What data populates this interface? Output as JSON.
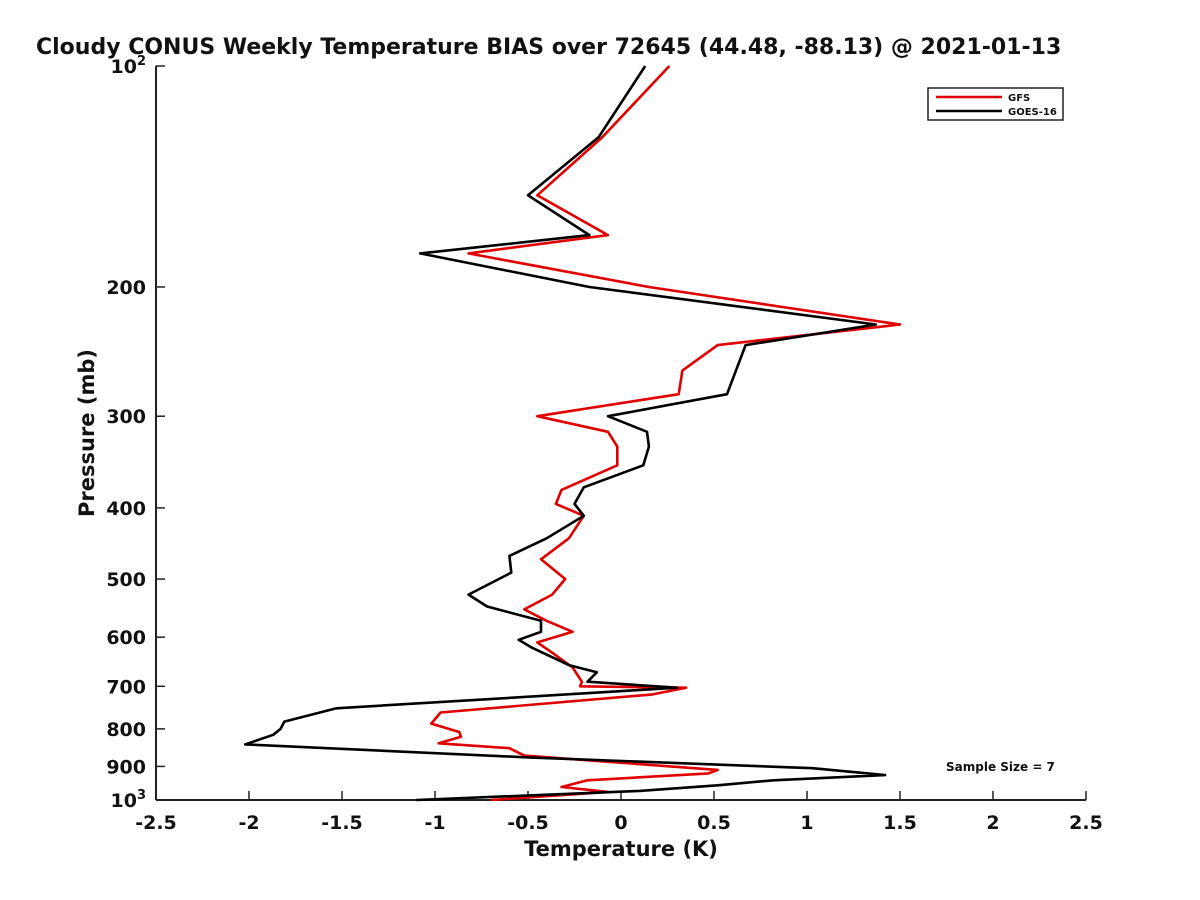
{
  "chart_data": {
    "type": "line",
    "title": "Cloudy CONUS Weekly Temperature BIAS over 72645 (44.48, -88.13) @ 2021-01-13",
    "xlabel": "Temperature (K)",
    "ylabel": "Pressure (mb)",
    "xlim": [
      -2.5,
      2.5
    ],
    "ylim": [
      100,
      1000
    ],
    "yscale": "log",
    "yaxis_reversed": true,
    "grid": false,
    "legend_position": "top-right",
    "x_ticks": [
      -2.5,
      -2,
      -1.5,
      -1,
      -0.5,
      0,
      0.5,
      1,
      1.5,
      2,
      2.5
    ],
    "x_tick_labels": [
      "-2.5",
      "-2",
      "-1.5",
      "-1",
      "-0.5",
      "0",
      "0.5",
      "1",
      "1.5",
      "2",
      "2.5"
    ],
    "y_tick_labels": [
      {
        "value": 100,
        "base": "10",
        "exp": "2"
      },
      {
        "value": 200,
        "base": "200",
        "exp": ""
      },
      {
        "value": 300,
        "base": "300",
        "exp": ""
      },
      {
        "value": 400,
        "base": "400",
        "exp": ""
      },
      {
        "value": 500,
        "base": "500",
        "exp": ""
      },
      {
        "value": 600,
        "base": "600",
        "exp": ""
      },
      {
        "value": 700,
        "base": "700",
        "exp": ""
      },
      {
        "value": 800,
        "base": "800",
        "exp": ""
      },
      {
        "value": 900,
        "base": "900",
        "exp": ""
      },
      {
        "value": 1000,
        "base": "10",
        "exp": "3"
      }
    ],
    "annotation": "Sample Size = 7",
    "series": [
      {
        "name": "GFS",
        "color": "#e00000",
        "points": [
          [
            0.26,
            100
          ],
          [
            -0.1,
            125
          ],
          [
            -0.45,
            150
          ],
          [
            -0.07,
            170
          ],
          [
            -0.82,
            180
          ],
          [
            0.15,
            200
          ],
          [
            1.5,
            225
          ],
          [
            0.52,
            240
          ],
          [
            0.33,
            260
          ],
          [
            0.31,
            280
          ],
          [
            -0.45,
            300
          ],
          [
            -0.07,
            315
          ],
          [
            -0.02,
            330
          ],
          [
            -0.02,
            350
          ],
          [
            -0.32,
            378
          ],
          [
            -0.35,
            395
          ],
          [
            -0.2,
            410
          ],
          [
            -0.28,
            440
          ],
          [
            -0.43,
            470
          ],
          [
            -0.3,
            500
          ],
          [
            -0.37,
            525
          ],
          [
            -0.52,
            550
          ],
          [
            -0.4,
            570
          ],
          [
            -0.26,
            590
          ],
          [
            -0.45,
            610
          ],
          [
            -0.37,
            630
          ],
          [
            -0.26,
            660
          ],
          [
            -0.21,
            690
          ],
          [
            -0.22,
            700
          ],
          [
            0.35,
            703
          ],
          [
            0.17,
            718
          ],
          [
            -0.97,
            760
          ],
          [
            -1.02,
            787
          ],
          [
            -0.87,
            808
          ],
          [
            -0.86,
            820
          ],
          [
            -0.98,
            837
          ],
          [
            -0.6,
            850
          ],
          [
            -0.52,
            870
          ],
          [
            0.52,
            910
          ],
          [
            0.47,
            920
          ],
          [
            -0.18,
            940
          ],
          [
            -0.32,
            960
          ],
          [
            -0.07,
            975
          ],
          [
            -0.7,
            1000
          ]
        ]
      },
      {
        "name": "GOES-16",
        "color": "#000000",
        "points": [
          [
            0.13,
            100
          ],
          [
            -0.12,
            125
          ],
          [
            -0.5,
            150
          ],
          [
            -0.17,
            170
          ],
          [
            -1.08,
            180
          ],
          [
            -0.17,
            200
          ],
          [
            1.37,
            225
          ],
          [
            0.67,
            240
          ],
          [
            0.57,
            280
          ],
          [
            -0.07,
            300
          ],
          [
            0.14,
            315
          ],
          [
            0.15,
            330
          ],
          [
            0.12,
            350
          ],
          [
            -0.2,
            375
          ],
          [
            -0.25,
            395
          ],
          [
            -0.2,
            410
          ],
          [
            -0.4,
            440
          ],
          [
            -0.6,
            465
          ],
          [
            -0.59,
            490
          ],
          [
            -0.82,
            525
          ],
          [
            -0.72,
            545
          ],
          [
            -0.43,
            570
          ],
          [
            -0.43,
            590
          ],
          [
            -0.55,
            605
          ],
          [
            -0.48,
            620
          ],
          [
            -0.28,
            655
          ],
          [
            -0.13,
            670
          ],
          [
            -0.18,
            690
          ],
          [
            0.3,
            703
          ],
          [
            -0.05,
            712
          ],
          [
            -1.53,
            750
          ],
          [
            -1.81,
            782
          ],
          [
            -1.83,
            800
          ],
          [
            -1.87,
            815
          ],
          [
            -2.02,
            840
          ],
          [
            -0.5,
            875
          ],
          [
            1.03,
            905
          ],
          [
            1.42,
            925
          ],
          [
            0.82,
            940
          ],
          [
            0.52,
            955
          ],
          [
            0.1,
            972
          ],
          [
            -1.1,
            1000
          ]
        ]
      }
    ]
  }
}
